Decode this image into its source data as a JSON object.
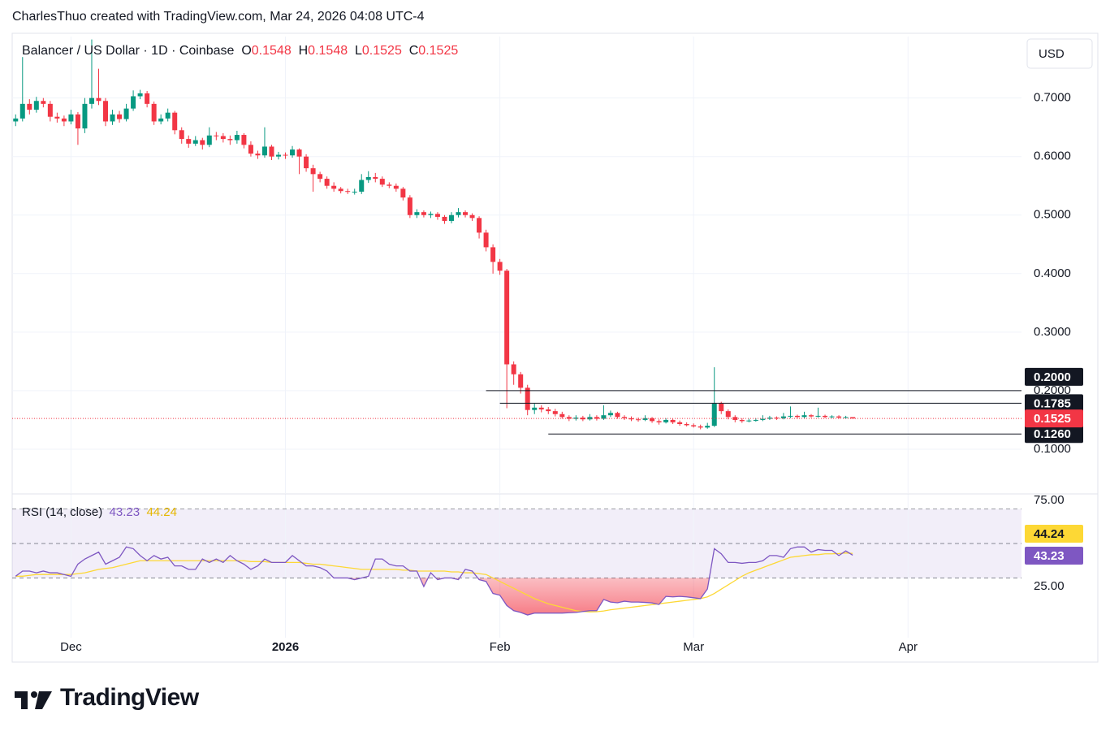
{
  "header": {
    "credit": "CharlesThuo created with TradingView.com, Mar 24, 2026 04:08 UTC-4"
  },
  "footer": {
    "logo": "TradingView"
  },
  "chart_data": {
    "type": "candlestick",
    "title": "Balancer / US Dollar · 1D · Coinbase",
    "ohlc_letters": [
      "O",
      "H",
      "L",
      "C"
    ],
    "currency": "USD",
    "up_color": "#089981",
    "down_color": "#f23645",
    "grid": true,
    "xlim": [
      -0.5,
      145.4
    ],
    "xticks": [
      {
        "value": 8,
        "label": "Dec"
      },
      {
        "value": 39,
        "label": "2026"
      },
      {
        "value": 70,
        "label": "Feb"
      },
      {
        "value": 98,
        "label": "Mar"
      },
      {
        "value": 129,
        "label": "Apr"
      }
    ],
    "ylim": [
      0.025,
      0.805
    ],
    "yticks": [
      {
        "value": 0.1,
        "label": "0.1000"
      },
      {
        "value": 0.2,
        "label": "0.2000"
      },
      {
        "value": 0.3,
        "label": "0.3000"
      },
      {
        "value": 0.4,
        "label": "0.4000"
      },
      {
        "value": 0.5,
        "label": "0.5000"
      },
      {
        "value": 0.6,
        "label": "0.6000"
      },
      {
        "value": 0.7,
        "label": "0.7000"
      }
    ],
    "hlines": [
      {
        "value": 0.2,
        "label": "0.2000",
        "from": 68
      },
      {
        "value": 0.1785,
        "label": "0.1785",
        "from": 70
      },
      {
        "value": 0.126,
        "label": "0.1260",
        "from": 77
      }
    ],
    "candles": [
      [
        0.66,
        0.672,
        0.652,
        0.665
      ],
      [
        0.665,
        0.77,
        0.66,
        0.69
      ],
      [
        0.69,
        0.698,
        0.672,
        0.68
      ],
      [
        0.68,
        0.702,
        0.675,
        0.695
      ],
      [
        0.695,
        0.7,
        0.684,
        0.69
      ],
      [
        0.69,
        0.695,
        0.66,
        0.668
      ],
      [
        0.668,
        0.675,
        0.658,
        0.665
      ],
      [
        0.665,
        0.67,
        0.652,
        0.66
      ],
      [
        0.66,
        0.68,
        0.655,
        0.672
      ],
      [
        0.672,
        0.676,
        0.62,
        0.648
      ],
      [
        0.648,
        0.7,
        0.64,
        0.69
      ],
      [
        0.69,
        0.8,
        0.682,
        0.7
      ],
      [
        0.7,
        0.75,
        0.688,
        0.695
      ],
      [
        0.695,
        0.7,
        0.652,
        0.66
      ],
      [
        0.66,
        0.68,
        0.654,
        0.672
      ],
      [
        0.672,
        0.678,
        0.658,
        0.664
      ],
      [
        0.664,
        0.69,
        0.66,
        0.682
      ],
      [
        0.682,
        0.713,
        0.678,
        0.703
      ],
      [
        0.703,
        0.714,
        0.698,
        0.708
      ],
      [
        0.708,
        0.712,
        0.684,
        0.69
      ],
      [
        0.69,
        0.694,
        0.654,
        0.66
      ],
      [
        0.66,
        0.672,
        0.655,
        0.665
      ],
      [
        0.665,
        0.682,
        0.66,
        0.675
      ],
      [
        0.675,
        0.678,
        0.638,
        0.645
      ],
      [
        0.645,
        0.65,
        0.622,
        0.63
      ],
      [
        0.63,
        0.636,
        0.615,
        0.622
      ],
      [
        0.622,
        0.635,
        0.618,
        0.628
      ],
      [
        0.628,
        0.632,
        0.612,
        0.62
      ],
      [
        0.62,
        0.65,
        0.616,
        0.636
      ],
      [
        0.636,
        0.642,
        0.628,
        0.635
      ],
      [
        0.635,
        0.64,
        0.624,
        0.63
      ],
      [
        0.63,
        0.636,
        0.62,
        0.628
      ],
      [
        0.628,
        0.644,
        0.622,
        0.637
      ],
      [
        0.637,
        0.64,
        0.614,
        0.62
      ],
      [
        0.62,
        0.626,
        0.6,
        0.605
      ],
      [
        0.605,
        0.61,
        0.596,
        0.602
      ],
      [
        0.602,
        0.65,
        0.598,
        0.617
      ],
      [
        0.617,
        0.62,
        0.594,
        0.6
      ],
      [
        0.6,
        0.608,
        0.595,
        0.603
      ],
      [
        0.603,
        0.607,
        0.596,
        0.602
      ],
      [
        0.602,
        0.618,
        0.598,
        0.612
      ],
      [
        0.612,
        0.614,
        0.57,
        0.6
      ],
      [
        0.6,
        0.604,
        0.574,
        0.58
      ],
      [
        0.58,
        0.586,
        0.54,
        0.57
      ],
      [
        0.57,
        0.574,
        0.556,
        0.562
      ],
      [
        0.562,
        0.566,
        0.545,
        0.55
      ],
      [
        0.55,
        0.556,
        0.54,
        0.545
      ],
      [
        0.545,
        0.548,
        0.537,
        0.541
      ],
      [
        0.541,
        0.545,
        0.536,
        0.54
      ],
      [
        0.54,
        0.545,
        0.535,
        0.54
      ],
      [
        0.54,
        0.57,
        0.536,
        0.56
      ],
      [
        0.56,
        0.575,
        0.555,
        0.565
      ],
      [
        0.565,
        0.572,
        0.556,
        0.562
      ],
      [
        0.562,
        0.566,
        0.548,
        0.552
      ],
      [
        0.552,
        0.556,
        0.546,
        0.55
      ],
      [
        0.55,
        0.554,
        0.54,
        0.545
      ],
      [
        0.545,
        0.548,
        0.525,
        0.53
      ],
      [
        0.53,
        0.534,
        0.495,
        0.5
      ],
      [
        0.5,
        0.51,
        0.495,
        0.505
      ],
      [
        0.505,
        0.508,
        0.496,
        0.5
      ],
      [
        0.5,
        0.506,
        0.495,
        0.502
      ],
      [
        0.502,
        0.505,
        0.492,
        0.497
      ],
      [
        0.497,
        0.5,
        0.485,
        0.49
      ],
      [
        0.49,
        0.505,
        0.486,
        0.5
      ],
      [
        0.5,
        0.512,
        0.496,
        0.505
      ],
      [
        0.505,
        0.508,
        0.496,
        0.5
      ],
      [
        0.5,
        0.503,
        0.49,
        0.495
      ],
      [
        0.495,
        0.498,
        0.46,
        0.47
      ],
      [
        0.47,
        0.475,
        0.438,
        0.445
      ],
      [
        0.445,
        0.45,
        0.4,
        0.42
      ],
      [
        0.42,
        0.425,
        0.398,
        0.405
      ],
      [
        0.405,
        0.408,
        0.17,
        0.245
      ],
      [
        0.245,
        0.25,
        0.21,
        0.228
      ],
      [
        0.228,
        0.232,
        0.195,
        0.205
      ],
      [
        0.205,
        0.21,
        0.158,
        0.167
      ],
      [
        0.167,
        0.178,
        0.16,
        0.171
      ],
      [
        0.171,
        0.175,
        0.163,
        0.168
      ],
      [
        0.168,
        0.172,
        0.16,
        0.165
      ],
      [
        0.165,
        0.169,
        0.156,
        0.16
      ],
      [
        0.16,
        0.164,
        0.152,
        0.155
      ],
      [
        0.155,
        0.158,
        0.148,
        0.152
      ],
      [
        0.152,
        0.158,
        0.149,
        0.154
      ],
      [
        0.154,
        0.157,
        0.148,
        0.151
      ],
      [
        0.151,
        0.16,
        0.149,
        0.155
      ],
      [
        0.155,
        0.158,
        0.149,
        0.152
      ],
      [
        0.152,
        0.175,
        0.15,
        0.158
      ],
      [
        0.158,
        0.166,
        0.155,
        0.162
      ],
      [
        0.162,
        0.164,
        0.152,
        0.155
      ],
      [
        0.155,
        0.158,
        0.15,
        0.153
      ],
      [
        0.153,
        0.156,
        0.148,
        0.151
      ],
      [
        0.151,
        0.154,
        0.147,
        0.15
      ],
      [
        0.15,
        0.158,
        0.148,
        0.153
      ],
      [
        0.153,
        0.155,
        0.145,
        0.148
      ],
      [
        0.148,
        0.151,
        0.142,
        0.146
      ],
      [
        0.146,
        0.153,
        0.144,
        0.15
      ],
      [
        0.15,
        0.152,
        0.143,
        0.146
      ],
      [
        0.146,
        0.149,
        0.14,
        0.143
      ],
      [
        0.143,
        0.146,
        0.139,
        0.141
      ],
      [
        0.141,
        0.144,
        0.137,
        0.139
      ],
      [
        0.139,
        0.142,
        0.134,
        0.137
      ],
      [
        0.137,
        0.145,
        0.135,
        0.14
      ],
      [
        0.14,
        0.24,
        0.138,
        0.178
      ],
      [
        0.178,
        0.181,
        0.16,
        0.165
      ],
      [
        0.165,
        0.168,
        0.151,
        0.155
      ],
      [
        0.155,
        0.158,
        0.146,
        0.15
      ],
      [
        0.15,
        0.153,
        0.145,
        0.148
      ],
      [
        0.148,
        0.152,
        0.146,
        0.149
      ],
      [
        0.149,
        0.153,
        0.147,
        0.15
      ],
      [
        0.15,
        0.158,
        0.148,
        0.152
      ],
      [
        0.152,
        0.157,
        0.15,
        0.154
      ],
      [
        0.154,
        0.156,
        0.15,
        0.153
      ],
      [
        0.153,
        0.162,
        0.151,
        0.156
      ],
      [
        0.156,
        0.173,
        0.153,
        0.157
      ],
      [
        0.157,
        0.159,
        0.152,
        0.155
      ],
      [
        0.155,
        0.164,
        0.153,
        0.158
      ],
      [
        0.158,
        0.16,
        0.154,
        0.156
      ],
      [
        0.156,
        0.171,
        0.154,
        0.157
      ],
      [
        0.157,
        0.159,
        0.153,
        0.155
      ],
      [
        0.155,
        0.158,
        0.153,
        0.156
      ],
      [
        0.156,
        0.158,
        0.152,
        0.154
      ],
      [
        0.154,
        0.157,
        0.152,
        0.1548
      ],
      [
        0.1548,
        0.1548,
        0.1525,
        0.1525
      ]
    ],
    "rsi": {
      "title": "RSI (14, close)",
      "color": "#7e57c2",
      "ma_color": "#fdd835",
      "ylim": [
        -4.7,
        78.8
      ],
      "yticks": [
        {
          "value": 75,
          "label": "75.00"
        },
        {
          "value": 25,
          "label": "25.00"
        }
      ],
      "levels": [
        70,
        50,
        30
      ],
      "values": [
        31,
        34,
        34,
        33,
        34,
        33,
        33,
        32,
        31,
        38,
        41,
        43,
        45,
        38,
        40,
        42,
        48,
        47,
        43,
        40,
        43,
        41,
        42,
        37,
        37,
        35,
        35,
        41,
        39,
        41,
        39,
        43,
        40,
        38,
        35,
        37,
        41,
        39,
        39,
        39,
        43,
        40,
        37,
        37,
        36,
        34,
        30,
        30,
        30,
        29,
        30,
        31,
        41,
        41,
        38,
        37,
        37,
        34,
        34,
        25,
        33,
        29,
        30,
        30,
        29,
        35,
        34,
        29,
        28,
        21,
        20,
        14,
        11,
        10,
        8.5,
        9.6,
        9.6,
        9.6,
        9.6,
        9.6,
        9.8,
        10,
        10.5,
        11,
        11,
        17.5,
        16,
        15.6,
        16.5,
        16,
        16,
        15.8,
        15.5,
        14.6,
        19.3,
        19,
        19.3,
        19,
        18.5,
        18,
        23.6,
        47,
        44,
        39,
        39,
        38.5,
        39,
        39,
        40,
        43,
        43,
        42,
        47,
        48,
        48,
        45,
        46.5,
        46,
        46,
        43,
        45.7,
        43.23
      ],
      "ma": [
        31,
        31,
        31.5,
        32,
        32,
        32,
        32,
        32,
        32,
        32.5,
        33,
        34,
        35,
        35.5,
        36,
        37,
        38,
        39,
        40,
        40,
        40,
        40,
        40,
        40,
        40,
        40,
        40,
        40,
        40,
        40,
        40,
        40,
        40,
        40,
        39.5,
        39.5,
        39.5,
        39,
        39,
        39,
        39,
        39,
        38.5,
        38,
        38,
        37.5,
        37,
        36.5,
        36,
        35.5,
        35,
        35,
        35,
        35,
        35,
        35,
        34.5,
        34.5,
        34,
        34,
        34,
        34,
        34,
        33.5,
        33.5,
        33,
        33,
        32.5,
        32,
        30,
        28,
        26,
        24,
        22,
        20,
        18,
        16.5,
        15,
        14,
        13,
        12,
        11,
        10.5,
        10.3,
        10.4,
        10.8,
        11.5,
        12,
        12.5,
        13,
        13.5,
        14,
        14.5,
        15,
        15.5,
        16,
        16.5,
        17,
        17.5,
        18,
        19,
        21,
        23.5,
        26,
        28.5,
        31,
        33,
        34.5,
        36,
        37.5,
        39,
        40.5,
        42,
        42.5,
        43,
        43.5,
        43.5,
        44,
        44,
        44.2,
        44.5,
        44.24
      ]
    }
  }
}
